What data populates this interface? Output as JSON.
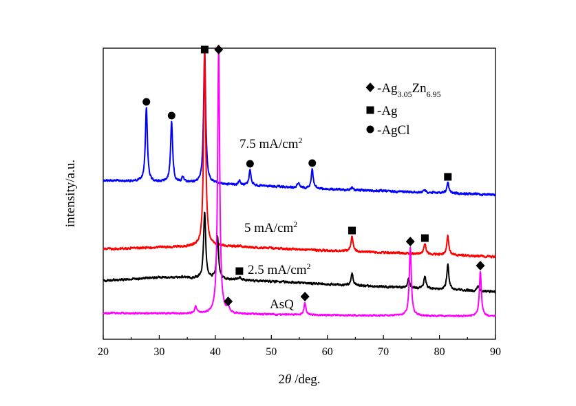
{
  "chart_data": {
    "type": "line",
    "xlabel_prefix": "2",
    "xlabel_var": "θ",
    "xlabel_suffix": " /deg.",
    "ylabel": "intensity/a.u.",
    "xlim": [
      20,
      90
    ],
    "xticks": [
      20,
      30,
      40,
      50,
      60,
      70,
      80,
      90
    ],
    "grid": false,
    "legend_position": "top-right",
    "legend": [
      {
        "marker": "diamond",
        "prefix": "-Ag",
        "sub1": "3.05",
        "mid": "Zn",
        "sub2": "6.95"
      },
      {
        "marker": "square",
        "label": "-Ag"
      },
      {
        "marker": "circle",
        "label": "-AgCl"
      }
    ],
    "series": [
      {
        "label_base": "7.5 mA/cm",
        "label_sup": "2",
        "color": "#0000ff",
        "baseline": [
          [
            20,
            262
          ],
          [
            40,
            267
          ],
          [
            60,
            275
          ],
          [
            90,
            283
          ]
        ],
        "noise": 2.5,
        "peaks": [
          {
            "x": 27.7,
            "top": 157
          },
          {
            "x": 32.2,
            "top": 177
          },
          {
            "x": 34.2,
            "top": 258
          },
          {
            "x": 38.1,
            "top": 72
          },
          {
            "x": 44.3,
            "top": 262
          },
          {
            "x": 46.2,
            "top": 247
          },
          {
            "x": 54.8,
            "top": 266
          },
          {
            "x": 57.3,
            "top": 246
          },
          {
            "x": 64.4,
            "top": 272
          },
          {
            "x": 77.4,
            "top": 276
          },
          {
            "x": 81.5,
            "top": 266
          }
        ],
        "markers": [
          {
            "type": "circle",
            "x": 27.7
          },
          {
            "type": "circle",
            "x": 32.2
          },
          {
            "type": "square",
            "x": 38.1
          },
          {
            "type": "circle",
            "x": 46.2
          },
          {
            "type": "circle",
            "x": 57.3
          },
          {
            "type": "square",
            "x": 81.5
          }
        ]
      },
      {
        "label_base": "5 mA/cm",
        "label_sup": "2",
        "color": "#ff0000",
        "baseline": [
          [
            20,
            362
          ],
          [
            40,
            357
          ],
          [
            60,
            364
          ],
          [
            90,
            373
          ]
        ],
        "noise": 2.5,
        "peaks": [
          {
            "x": 38.1,
            "top": 72
          },
          {
            "x": 44.3,
            "top": 357
          },
          {
            "x": 64.4,
            "top": 344
          },
          {
            "x": 77.4,
            "top": 355
          },
          {
            "x": 81.5,
            "top": 343
          }
        ],
        "markers": [
          {
            "type": "square",
            "x": 64.4
          },
          {
            "type": "square",
            "x": 77.4
          }
        ]
      },
      {
        "label_base": "2.5 mA/cm",
        "label_sup": "2",
        "color": "#000000",
        "baseline": [
          [
            20,
            408
          ],
          [
            30,
            403
          ],
          [
            40,
            405
          ],
          [
            60,
            413
          ],
          [
            90,
            424
          ]
        ],
        "noise": 2.5,
        "peaks": [
          {
            "x": 34.1,
            "top": 402
          },
          {
            "x": 38.1,
            "top": 307
          },
          {
            "x": 40.4,
            "top": 345
          },
          {
            "x": 44.3,
            "top": 403
          },
          {
            "x": 64.4,
            "top": 397
          },
          {
            "x": 74.5,
            "top": 404
          },
          {
            "x": 77.4,
            "top": 401
          },
          {
            "x": 81.5,
            "top": 384
          },
          {
            "x": 86.9,
            "top": 416
          }
        ],
        "markers": [
          {
            "type": "square",
            "x": 44.3
          }
        ]
      },
      {
        "label_base": "AsQ",
        "label_sup": "",
        "color": "#ff00ff",
        "baseline": [
          [
            20,
            455
          ],
          [
            40,
            456
          ],
          [
            60,
            458
          ],
          [
            90,
            460
          ]
        ],
        "noise": 1.8,
        "peaks": [
          {
            "x": 36.5,
            "top": 446
          },
          {
            "x": 40.6,
            "top": 72
          },
          {
            "x": 42.3,
            "top": 447
          },
          {
            "x": 56.0,
            "top": 440
          },
          {
            "x": 74.8,
            "top": 360
          },
          {
            "x": 87.3,
            "top": 395
          }
        ],
        "markers": [
          {
            "type": "diamond",
            "x": 40.6
          },
          {
            "type": "diamond",
            "x": 42.3
          },
          {
            "type": "diamond",
            "x": 56.0
          },
          {
            "type": "diamond",
            "x": 74.8
          },
          {
            "type": "diamond",
            "x": 87.3
          }
        ]
      }
    ]
  }
}
